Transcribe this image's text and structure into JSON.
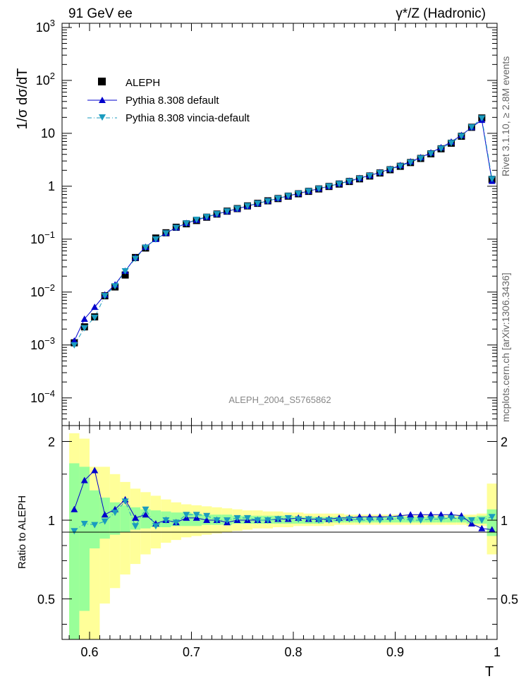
{
  "header": {
    "left": "91 GeV ee",
    "right": "γ*/Z (Hadronic)"
  },
  "side_labels": {
    "rivet": "Rivet 3.1.10, ≥ 2.8M events",
    "mcplots": "mcplots.cern.ch [arXiv:1306.3436]"
  },
  "analysis_label": "ALEPH_2004_S5765862",
  "colors": {
    "data": "#000000",
    "pythia_default": "#0000cc",
    "pythia_vincia": "#1a9bbf",
    "band_inner": "#99ff99",
    "band_outer": "#ffff99"
  },
  "chart_data": [
    {
      "type": "scatter",
      "name": "main",
      "ylabel": "1/σ dσ/dT",
      "xlabel": "T",
      "xlim": [
        0.573,
        1.0
      ],
      "ylim": [
        3e-05,
        1200
      ],
      "yscale": "log",
      "ytick_labels": [
        "10^-4",
        "10^-3",
        "10^-2",
        "10^-1",
        "1",
        "10",
        "10^2",
        "10^3"
      ],
      "legend": [
        "ALEPH",
        "Pythia 8.308 default",
        "Pythia 8.308 vincia-default"
      ],
      "legend_position": "top-left",
      "x": [
        0.585,
        0.595,
        0.605,
        0.615,
        0.625,
        0.635,
        0.645,
        0.655,
        0.665,
        0.675,
        0.685,
        0.695,
        0.705,
        0.715,
        0.725,
        0.735,
        0.745,
        0.755,
        0.765,
        0.775,
        0.785,
        0.795,
        0.805,
        0.815,
        0.825,
        0.835,
        0.845,
        0.855,
        0.865,
        0.875,
        0.885,
        0.895,
        0.905,
        0.915,
        0.925,
        0.935,
        0.945,
        0.955,
        0.965,
        0.975,
        0.985,
        0.995
      ],
      "series": [
        {
          "name": "ALEPH",
          "values": [
            0.0011,
            0.0022,
            0.0034,
            0.0085,
            0.0125,
            0.021,
            0.045,
            0.068,
            0.105,
            0.132,
            0.168,
            0.195,
            0.225,
            0.26,
            0.298,
            0.338,
            0.378,
            0.425,
            0.475,
            0.53,
            0.585,
            0.65,
            0.72,
            0.8,
            0.89,
            0.99,
            1.1,
            1.23,
            1.38,
            1.56,
            1.78,
            2.05,
            2.38,
            2.8,
            3.35,
            4.1,
            5.1,
            6.5,
            8.8,
            13.0,
            19.5,
            1.35
          ]
        },
        {
          "name": "Pythia 8.308 default",
          "values": [
            0.0012,
            0.0031,
            0.0052,
            0.0089,
            0.0138,
            0.025,
            0.045,
            0.071,
            0.1,
            0.13,
            0.165,
            0.2,
            0.23,
            0.262,
            0.298,
            0.335,
            0.375,
            0.422,
            0.475,
            0.53,
            0.59,
            0.655,
            0.73,
            0.81,
            0.9,
            1.0,
            1.12,
            1.26,
            1.42,
            1.6,
            1.83,
            2.11,
            2.48,
            2.92,
            3.5,
            4.3,
            5.4,
            6.9,
            9.2,
            13.0,
            17.8,
            1.25
          ]
        },
        {
          "name": "Pythia 8.308 vincia-default",
          "values": [
            0.001,
            0.0021,
            0.0033,
            0.0085,
            0.013,
            0.025,
            0.043,
            0.07,
            0.1,
            0.13,
            0.165,
            0.2,
            0.235,
            0.265,
            0.3,
            0.337,
            0.38,
            0.427,
            0.475,
            0.525,
            0.59,
            0.66,
            0.73,
            0.81,
            0.9,
            1.0,
            1.11,
            1.24,
            1.39,
            1.58,
            1.79,
            2.07,
            2.4,
            2.82,
            3.38,
            4.15,
            5.16,
            6.6,
            8.9,
            13.1,
            19.4,
            1.38
          ]
        }
      ]
    },
    {
      "type": "scatter",
      "name": "ratio",
      "ylabel": "Ratio to ALEPH",
      "xlabel": "T",
      "xlim": [
        0.573,
        1.0
      ],
      "ylim": [
        0.35,
        2.3
      ],
      "yscale": "log",
      "xtick_labels": [
        "0.6",
        "0.7",
        "0.8",
        "0.9",
        "1"
      ],
      "ytick_labels": [
        "0.5",
        "1",
        "2"
      ],
      "x": [
        0.585,
        0.595,
        0.605,
        0.615,
        0.625,
        0.635,
        0.645,
        0.655,
        0.665,
        0.675,
        0.685,
        0.695,
        0.705,
        0.715,
        0.725,
        0.735,
        0.745,
        0.755,
        0.765,
        0.775,
        0.785,
        0.795,
        0.805,
        0.815,
        0.825,
        0.835,
        0.845,
        0.855,
        0.865,
        0.875,
        0.885,
        0.895,
        0.905,
        0.915,
        0.925,
        0.935,
        0.945,
        0.955,
        0.965,
        0.975,
        0.985,
        0.995
      ],
      "band_inner": [
        [
          0.35,
          1.65
        ],
        [
          0.45,
          1.6
        ],
        [
          0.78,
          1.3
        ],
        [
          0.85,
          1.22
        ],
        [
          0.88,
          1.17
        ],
        [
          0.9,
          1.14
        ],
        [
          0.92,
          1.12
        ],
        [
          0.93,
          1.1
        ],
        [
          0.94,
          1.09
        ],
        [
          0.94,
          1.08
        ],
        [
          0.95,
          1.07
        ],
        [
          0.95,
          1.07
        ],
        [
          0.95,
          1.06
        ],
        [
          0.96,
          1.05
        ],
        [
          0.96,
          1.05
        ],
        [
          0.96,
          1.05
        ],
        [
          0.97,
          1.04
        ],
        [
          0.97,
          1.04
        ],
        [
          0.97,
          1.04
        ],
        [
          0.97,
          1.04
        ],
        [
          0.97,
          1.04
        ],
        [
          0.97,
          1.04
        ],
        [
          0.97,
          1.03
        ],
        [
          0.97,
          1.03
        ],
        [
          0.97,
          1.03
        ],
        [
          0.98,
          1.03
        ],
        [
          0.98,
          1.03
        ],
        [
          0.98,
          1.03
        ],
        [
          0.98,
          1.03
        ],
        [
          0.98,
          1.03
        ],
        [
          0.98,
          1.03
        ],
        [
          0.98,
          1.03
        ],
        [
          0.98,
          1.03
        ],
        [
          0.98,
          1.03
        ],
        [
          0.98,
          1.03
        ],
        [
          0.98,
          1.03
        ],
        [
          0.98,
          1.03
        ],
        [
          0.98,
          1.03
        ],
        [
          0.98,
          1.03
        ],
        [
          0.97,
          1.03
        ],
        [
          0.97,
          1.04
        ],
        [
          0.87,
          1.1
        ]
      ],
      "band_outer": [
        [
          0.35,
          2.15
        ],
        [
          0.35,
          2.05
        ],
        [
          0.35,
          1.6
        ],
        [
          0.48,
          1.6
        ],
        [
          0.55,
          1.5
        ],
        [
          0.62,
          1.4
        ],
        [
          0.68,
          1.32
        ],
        [
          0.74,
          1.28
        ],
        [
          0.78,
          1.24
        ],
        [
          0.82,
          1.2
        ],
        [
          0.84,
          1.17
        ],
        [
          0.86,
          1.15
        ],
        [
          0.87,
          1.14
        ],
        [
          0.88,
          1.13
        ],
        [
          0.89,
          1.12
        ],
        [
          0.9,
          1.11
        ],
        [
          0.91,
          1.1
        ],
        [
          0.92,
          1.09
        ],
        [
          0.93,
          1.09
        ],
        [
          0.93,
          1.08
        ],
        [
          0.94,
          1.08
        ],
        [
          0.94,
          1.07
        ],
        [
          0.95,
          1.07
        ],
        [
          0.95,
          1.06
        ],
        [
          0.95,
          1.06
        ],
        [
          0.95,
          1.06
        ],
        [
          0.96,
          1.06
        ],
        [
          0.96,
          1.05
        ],
        [
          0.96,
          1.05
        ],
        [
          0.96,
          1.05
        ],
        [
          0.96,
          1.05
        ],
        [
          0.96,
          1.05
        ],
        [
          0.96,
          1.05
        ],
        [
          0.96,
          1.05
        ],
        [
          0.96,
          1.05
        ],
        [
          0.96,
          1.05
        ],
        [
          0.96,
          1.05
        ],
        [
          0.96,
          1.05
        ],
        [
          0.96,
          1.05
        ],
        [
          0.95,
          1.05
        ],
        [
          0.95,
          1.06
        ],
        [
          0.74,
          1.38
        ]
      ],
      "series": [
        {
          "name": "Pythia 8.308 default",
          "values": [
            1.1,
            1.42,
            1.55,
            1.05,
            1.1,
            1.2,
            1.02,
            1.05,
            0.97,
            1.0,
            0.98,
            1.02,
            1.02,
            1.0,
            1.0,
            0.98,
            1.0,
            1.0,
            1.0,
            1.0,
            1.01,
            1.01,
            1.02,
            1.01,
            1.01,
            1.01,
            1.02,
            1.02,
            1.03,
            1.03,
            1.03,
            1.03,
            1.04,
            1.05,
            1.05,
            1.05,
            1.05,
            1.05,
            1.04,
            0.97,
            0.93,
            0.92
          ]
        },
        {
          "name": "Pythia 8.308 vincia-default",
          "values": [
            0.91,
            0.97,
            0.96,
            0.99,
            1.07,
            1.18,
            0.95,
            1.1,
            0.95,
            1.0,
            0.98,
            1.05,
            1.05,
            1.04,
            1.0,
            1.0,
            1.02,
            1.02,
            1.0,
            1.0,
            1.01,
            1.02,
            1.01,
            1.01,
            1.0,
            1.0,
            1.0,
            1.01,
            1.0,
            1.0,
            1.0,
            1.01,
            1.01,
            1.0,
            1.0,
            1.01,
            1.01,
            1.02,
            1.01,
            1.0,
            1.0,
            1.03
          ]
        }
      ]
    }
  ]
}
